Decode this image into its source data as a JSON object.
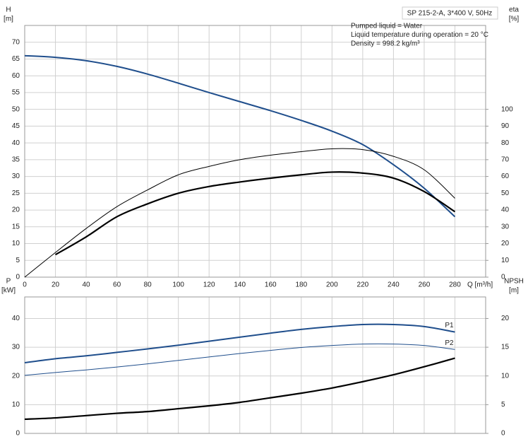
{
  "chart_data": [
    {
      "type": "line",
      "ylabel": "H",
      "yunit": "[m]",
      "y2label": "eta",
      "y2unit": "[%]",
      "xlabel": "Q [m³/h]",
      "model": "SP 215-2-A, 3*400 V, 50Hz",
      "info": [
        "Pumped liquid = Water",
        "Liquid temperature during operation = 20 °C",
        "Density = 998.2 kg/m³"
      ],
      "x": [
        0,
        20,
        40,
        60,
        80,
        100,
        120,
        140,
        160,
        180,
        200,
        220,
        240,
        260,
        280
      ],
      "xlim": [
        0,
        300
      ],
      "xticks": [
        0,
        20,
        40,
        60,
        80,
        100,
        120,
        140,
        160,
        180,
        200,
        220,
        240,
        260,
        280
      ],
      "ylim": [
        0,
        75
      ],
      "yticks": [
        0,
        5,
        10,
        15,
        20,
        25,
        30,
        35,
        40,
        45,
        50,
        55,
        60,
        65,
        70
      ],
      "y2lim": [
        0,
        150
      ],
      "y2ticks": [
        0,
        10,
        20,
        30,
        40,
        50,
        60,
        70,
        80,
        90,
        100
      ],
      "grid": true,
      "series": [
        {
          "color": "#1f4e8c",
          "width": 2,
          "values": [
            66,
            65.5,
            64.5,
            62.8,
            60.5,
            57.8,
            55,
            52.3,
            49.6,
            46.7,
            43.5,
            39.5,
            33.5,
            26.5,
            18
          ]
        },
        {
          "color": "#000000",
          "width": 1,
          "axis": "y2",
          "values": [
            0,
            14.7,
            29,
            42,
            52,
            61,
            66,
            70,
            72.7,
            74.8,
            76.5,
            76,
            72,
            64,
            47
          ]
        },
        {
          "color": "#000000",
          "width": 2.2,
          "axis": "y2",
          "values": [
            null,
            13.4,
            24,
            36,
            43.7,
            50,
            54,
            56.7,
            59,
            61,
            62.6,
            62,
            59,
            51,
            39
          ]
        }
      ]
    },
    {
      "type": "line",
      "ylabel": "P",
      "yunit": "[kW]",
      "y2label": "NPSH",
      "y2unit": "[m]",
      "x": [
        0,
        20,
        40,
        60,
        80,
        100,
        120,
        140,
        160,
        180,
        200,
        220,
        240,
        260,
        280
      ],
      "xlim": [
        0,
        300
      ],
      "xticks": [
        0,
        20,
        40,
        60,
        80,
        100,
        120,
        140,
        160,
        180,
        200,
        220,
        240,
        260,
        280
      ],
      "ylim": [
        0,
        47.5
      ],
      "yticks": [
        0,
        10,
        20,
        30,
        40
      ],
      "y2lim": [
        0,
        23.75
      ],
      "y2ticks": [
        0,
        5,
        10,
        15,
        20
      ],
      "grid": true,
      "series": [
        {
          "name": "P1",
          "color": "#1f4e8c",
          "width": 2,
          "values": [
            24.6,
            26,
            27,
            28.2,
            29.4,
            30.7,
            32.1,
            33.5,
            34.9,
            36.2,
            37.2,
            37.9,
            37.9,
            37.2,
            35.3
          ]
        },
        {
          "name": "P2",
          "color": "#1f4e8c",
          "width": 1,
          "values": [
            20.2,
            21.2,
            22.1,
            23.1,
            24.2,
            25.4,
            26.6,
            27.8,
            28.9,
            29.9,
            30.6,
            31.1,
            31.1,
            30.6,
            29.2
          ]
        },
        {
          "color": "#000000",
          "width": 2.2,
          "axis": "y2",
          "values": [
            2.47,
            2.7,
            3.1,
            3.5,
            3.8,
            4.3,
            4.8,
            5.4,
            6.2,
            7.0,
            7.9,
            9.0,
            10.2,
            11.6,
            13.1
          ]
        }
      ]
    }
  ]
}
